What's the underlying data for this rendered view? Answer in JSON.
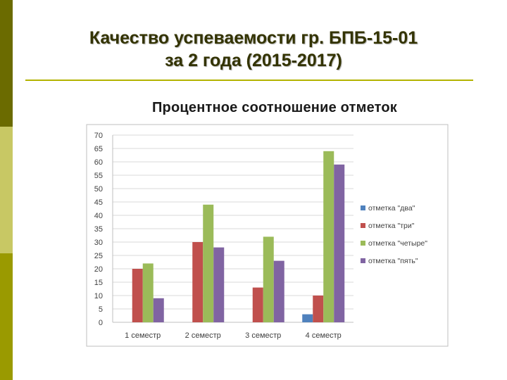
{
  "slide": {
    "title_line1": "Качество успеваемости гр. БПБ-15-01",
    "title_line2": "за 2 года (2015-2017)"
  },
  "colors": {
    "accent_dark": "#6b6b00",
    "accent_light": "#c8c864",
    "accent_mid": "#9a9a00"
  },
  "chart_data": {
    "type": "bar",
    "title": "Процентное соотношение отметок",
    "categories": [
      "1 семестр",
      "2 семестр",
      "3 семестр",
      "4 семестр"
    ],
    "series": [
      {
        "name": "отметка \"два\"",
        "color": "#4f81bd",
        "values": [
          0,
          0,
          0,
          3
        ]
      },
      {
        "name": "отметка \"три\"",
        "color": "#c0504d",
        "values": [
          20,
          30,
          13,
          10
        ]
      },
      {
        "name": "отметка \"четыре\"",
        "color": "#9bbb59",
        "values": [
          22,
          44,
          32,
          64
        ]
      },
      {
        "name": "отметка \"пять\"",
        "color": "#8064a2",
        "values": [
          9,
          28,
          23,
          59
        ]
      }
    ],
    "ylim": [
      0,
      70
    ],
    "yticks": [
      0,
      5,
      10,
      15,
      20,
      25,
      30,
      35,
      40,
      45,
      50,
      55,
      60,
      65,
      70
    ],
    "grid": true,
    "legend": "right"
  }
}
